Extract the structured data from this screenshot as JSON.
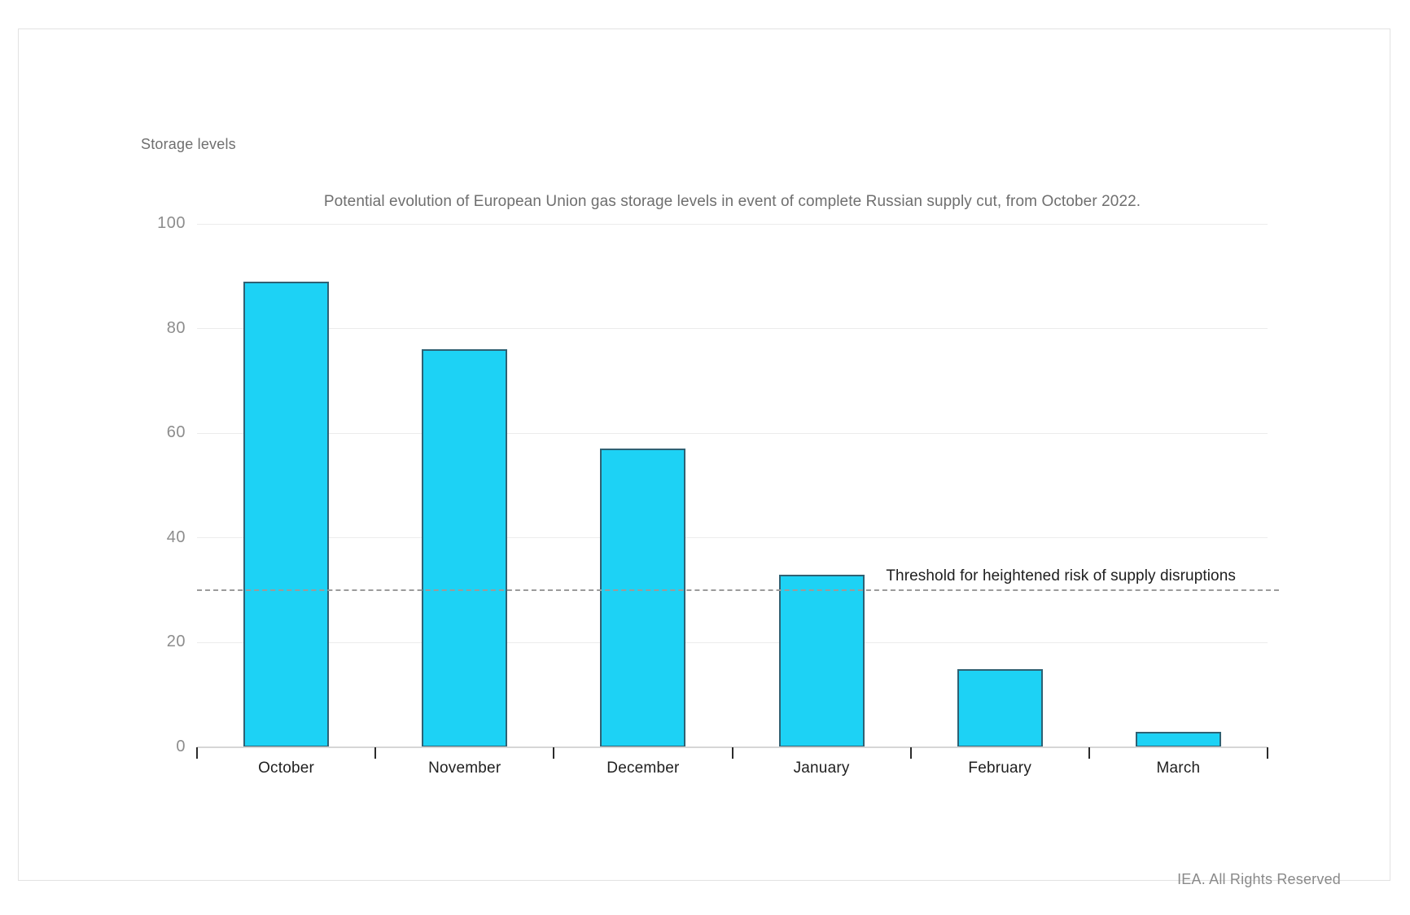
{
  "page": {
    "footer": "IEA. All Rights Reserved"
  },
  "chart_data": {
    "type": "bar",
    "title": "Potential evolution of European Union gas storage levels in event of complete Russian supply cut, from October 2022.",
    "ylabel": "Storage levels",
    "xlabel": "",
    "categories": [
      "October",
      "November",
      "December",
      "January",
      "February",
      "March"
    ],
    "values": [
      89,
      76,
      57,
      33,
      15,
      3
    ],
    "ylim": [
      0,
      100
    ],
    "yticks": [
      0,
      20,
      40,
      60,
      80,
      100
    ],
    "grid": true,
    "legend_position": "none",
    "threshold": {
      "value": 30,
      "label": "Threshold for heightened risk of supply disruptions"
    },
    "colors": {
      "bar_fill": "#1dd2f5",
      "bar_border": "#2f6173",
      "gridline": "#ececec",
      "axis_line": "#d6d6d6",
      "tick_mark": "#2b2b2b",
      "threshold_line": "#9b9b9b",
      "title_text": "#6f6f6f",
      "axis_tick_label": "#8d8d8d",
      "category_label": "#1f1f1f",
      "footer_text": "#8a8a8a",
      "panel_border": "#e2e2e2"
    }
  }
}
